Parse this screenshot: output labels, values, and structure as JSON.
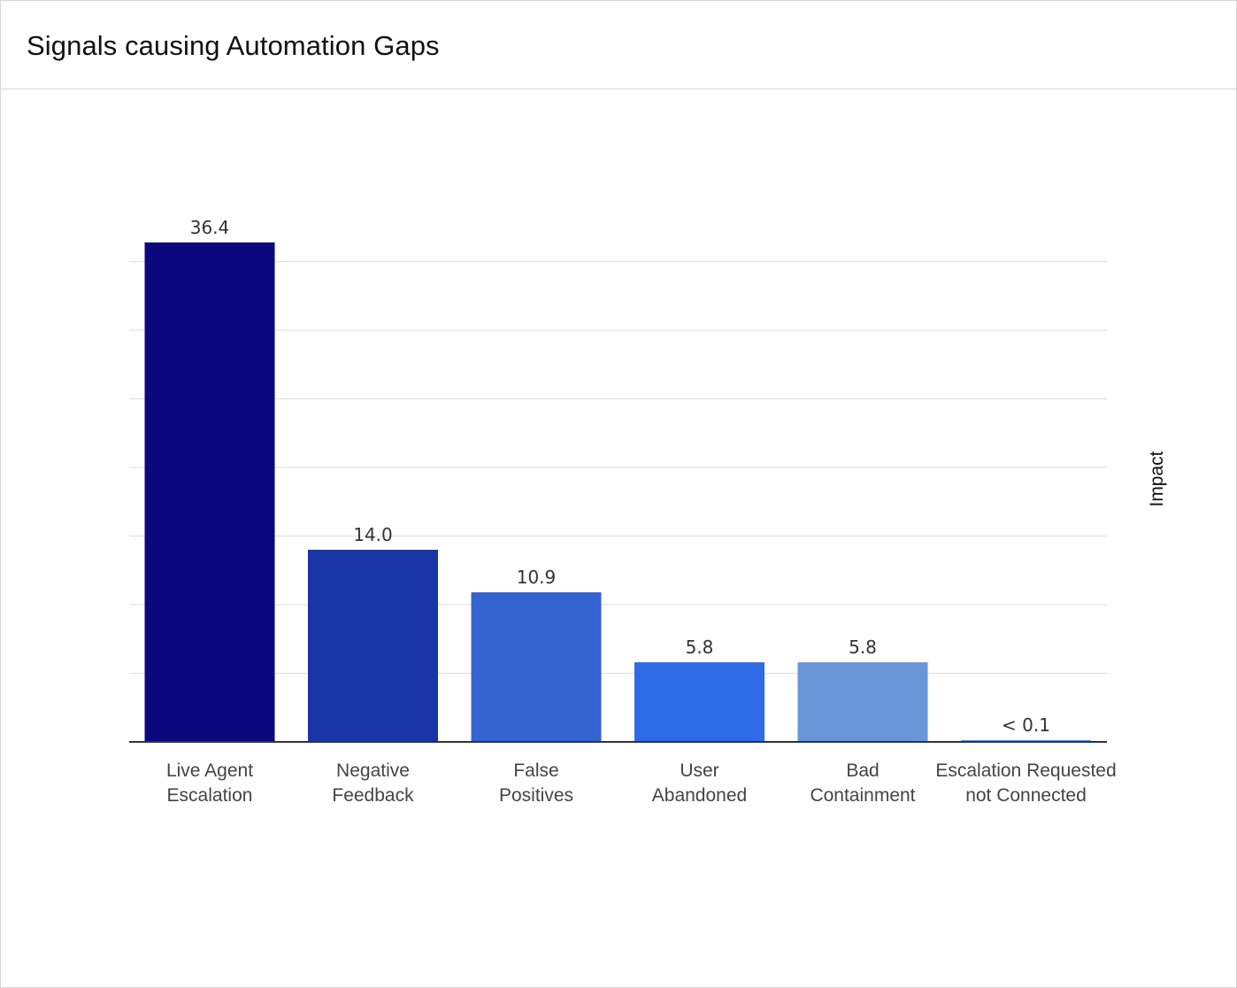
{
  "card": {
    "title": "Signals causing Automation Gaps"
  },
  "chart_data": {
    "type": "bar",
    "title": "Signals causing Automation Gaps",
    "xlabel": "",
    "ylabel": "Impact",
    "categories": [
      [
        "Live Agent",
        "Escalation"
      ],
      [
        "Negative",
        "Feedback"
      ],
      [
        "False",
        "Positives"
      ],
      [
        "User",
        "Abandoned"
      ],
      [
        "Bad",
        "Containment"
      ],
      [
        "Escalation Requested",
        "not Connected"
      ]
    ],
    "values": [
      36.4,
      14.0,
      10.9,
      5.8,
      5.8,
      0.1
    ],
    "data_labels": [
      "36.4",
      "14.0",
      "10.9",
      "5.8",
      "5.8",
      "< 0.1"
    ],
    "colors": [
      "#0b077d",
      "#1a36a6",
      "#3563d0",
      "#2f6be6",
      "#6b95d9",
      "#5b9bf0"
    ],
    "ylim": [
      0,
      35
    ],
    "y_gridlines": [
      5,
      10,
      15,
      20,
      25,
      30,
      35
    ],
    "grid": true,
    "legend": "none",
    "y_tick_labels_shown": false
  }
}
